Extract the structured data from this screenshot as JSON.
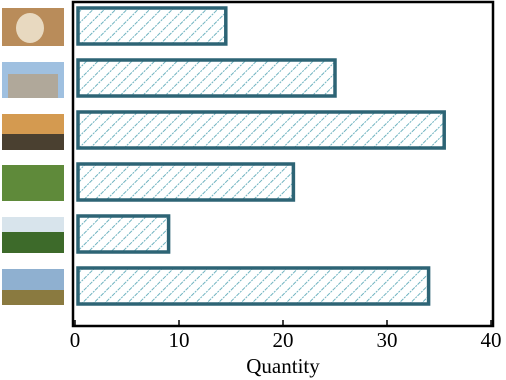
{
  "chart_data": {
    "type": "barh",
    "categories": [
      null,
      null,
      null,
      null,
      null,
      null
    ],
    "values": [
      14.5,
      25,
      35.5,
      21,
      9,
      34
    ],
    "color": "#2d6475",
    "hatch_color": "#6fb3c0",
    "xlabel": "Quantity",
    "xlim": [
      0,
      40
    ],
    "xticks": [
      0,
      10,
      20,
      30,
      40
    ]
  }
}
